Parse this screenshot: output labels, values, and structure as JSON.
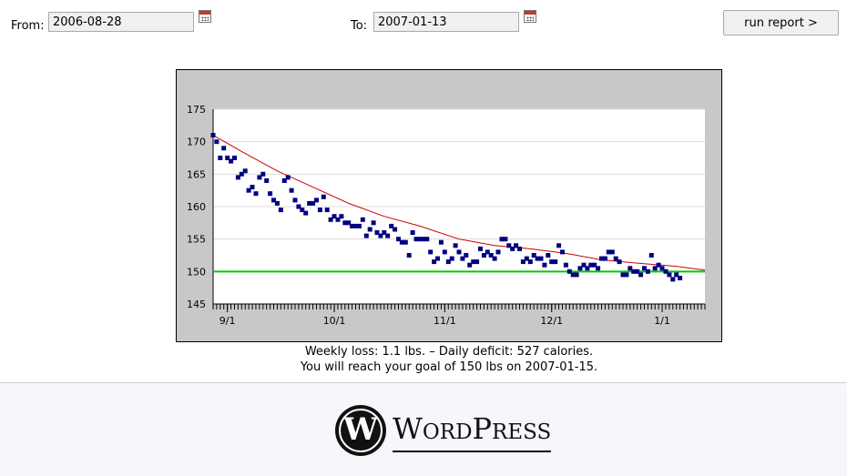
{
  "form": {
    "from_label": "From:",
    "from_value": "2006-08-28",
    "to_label": "To:",
    "to_value": "2007-01-13",
    "submit_label": "run report >",
    "calendar_icon": "calendar-icon"
  },
  "chart_data": {
    "type": "scatter",
    "title": "",
    "xlabel": "",
    "ylabel": "",
    "ylim": [
      145,
      175
    ],
    "yticks": [
      175,
      170,
      165,
      160,
      155,
      150,
      145
    ],
    "xlim": [
      "2006-08-28",
      "2007-01-13"
    ],
    "xticks": [
      {
        "label": "9/1",
        "date": "2006-09-01"
      },
      {
        "label": "10/1",
        "date": "2006-10-01"
      },
      {
        "label": "11/1",
        "date": "2006-11-01"
      },
      {
        "label": "12/1",
        "date": "2006-12-01"
      },
      {
        "label": "1/1",
        "date": "2007-01-01"
      }
    ],
    "grid": true,
    "legend": "none",
    "colors": {
      "points": "#000080",
      "trend": "#cc0000",
      "goal": "#00cc00",
      "plot_bg": "#ffffff",
      "frame_bg": "#c8c8c8"
    },
    "goal": 150,
    "points": [
      [
        "2006-08-28",
        171.0
      ],
      [
        "2006-08-29",
        170.0
      ],
      [
        "2006-08-30",
        167.5
      ],
      [
        "2006-08-31",
        169.0
      ],
      [
        "2006-09-01",
        167.5
      ],
      [
        "2006-09-02",
        167.0
      ],
      [
        "2006-09-03",
        167.5
      ],
      [
        "2006-09-04",
        164.5
      ],
      [
        "2006-09-05",
        165.0
      ],
      [
        "2006-09-06",
        165.5
      ],
      [
        "2006-09-07",
        162.5
      ],
      [
        "2006-09-08",
        163.0
      ],
      [
        "2006-09-09",
        162.0
      ],
      [
        "2006-09-10",
        164.5
      ],
      [
        "2006-09-11",
        165.0
      ],
      [
        "2006-09-12",
        164.0
      ],
      [
        "2006-09-13",
        162.0
      ],
      [
        "2006-09-14",
        161.0
      ],
      [
        "2006-09-15",
        160.5
      ],
      [
        "2006-09-16",
        159.5
      ],
      [
        "2006-09-17",
        164.0
      ],
      [
        "2006-09-18",
        164.5
      ],
      [
        "2006-09-19",
        162.5
      ],
      [
        "2006-09-20",
        161.0
      ],
      [
        "2006-09-21",
        160.0
      ],
      [
        "2006-09-22",
        159.5
      ],
      [
        "2006-09-23",
        159.0
      ],
      [
        "2006-09-24",
        160.5
      ],
      [
        "2006-09-25",
        160.5
      ],
      [
        "2006-09-26",
        161.0
      ],
      [
        "2006-09-27",
        159.5
      ],
      [
        "2006-09-28",
        161.5
      ],
      [
        "2006-09-29",
        159.5
      ],
      [
        "2006-09-30",
        158.0
      ],
      [
        "2006-10-01",
        158.5
      ],
      [
        "2006-10-02",
        158.0
      ],
      [
        "2006-10-03",
        158.5
      ],
      [
        "2006-10-04",
        157.5
      ],
      [
        "2006-10-05",
        157.5
      ],
      [
        "2006-10-06",
        157.0
      ],
      [
        "2006-10-07",
        157.0
      ],
      [
        "2006-10-08",
        157.0
      ],
      [
        "2006-10-09",
        158.0
      ],
      [
        "2006-10-10",
        155.5
      ],
      [
        "2006-10-11",
        156.5
      ],
      [
        "2006-10-12",
        157.5
      ],
      [
        "2006-10-13",
        156.0
      ],
      [
        "2006-10-14",
        155.5
      ],
      [
        "2006-10-15",
        156.0
      ],
      [
        "2006-10-16",
        155.5
      ],
      [
        "2006-10-17",
        157.0
      ],
      [
        "2006-10-18",
        156.5
      ],
      [
        "2006-10-19",
        155.0
      ],
      [
        "2006-10-20",
        154.5
      ],
      [
        "2006-10-21",
        154.5
      ],
      [
        "2006-10-22",
        152.5
      ],
      [
        "2006-10-23",
        156.0
      ],
      [
        "2006-10-24",
        155.0
      ],
      [
        "2006-10-25",
        155.0
      ],
      [
        "2006-10-26",
        155.0
      ],
      [
        "2006-10-27",
        155.0
      ],
      [
        "2006-10-28",
        153.0
      ],
      [
        "2006-10-29",
        151.5
      ],
      [
        "2006-10-30",
        152.0
      ],
      [
        "2006-10-31",
        154.5
      ],
      [
        "2006-11-01",
        153.0
      ],
      [
        "2006-11-02",
        151.5
      ],
      [
        "2006-11-03",
        152.0
      ],
      [
        "2006-11-04",
        154.0
      ],
      [
        "2006-11-05",
        153.0
      ],
      [
        "2006-11-06",
        152.0
      ],
      [
        "2006-11-07",
        152.5
      ],
      [
        "2006-11-08",
        151.0
      ],
      [
        "2006-11-09",
        151.5
      ],
      [
        "2006-11-10",
        151.5
      ],
      [
        "2006-11-11",
        153.5
      ],
      [
        "2006-11-12",
        152.5
      ],
      [
        "2006-11-13",
        153.0
      ],
      [
        "2006-11-14",
        152.5
      ],
      [
        "2006-11-15",
        152.0
      ],
      [
        "2006-11-16",
        153.0
      ],
      [
        "2006-11-17",
        155.0
      ],
      [
        "2006-11-18",
        155.0
      ],
      [
        "2006-11-19",
        154.0
      ],
      [
        "2006-11-20",
        153.5
      ],
      [
        "2006-11-21",
        154.0
      ],
      [
        "2006-11-22",
        153.5
      ],
      [
        "2006-11-23",
        151.5
      ],
      [
        "2006-11-24",
        152.0
      ],
      [
        "2006-11-25",
        151.5
      ],
      [
        "2006-11-26",
        152.5
      ],
      [
        "2006-11-27",
        152.0
      ],
      [
        "2006-11-28",
        152.0
      ],
      [
        "2006-11-29",
        151.0
      ],
      [
        "2006-11-30",
        152.5
      ],
      [
        "2006-12-01",
        151.5
      ],
      [
        "2006-12-02",
        151.5
      ],
      [
        "2006-12-03",
        154.0
      ],
      [
        "2006-12-04",
        153.0
      ],
      [
        "2006-12-05",
        151.0
      ],
      [
        "2006-12-06",
        150.0
      ],
      [
        "2006-12-07",
        149.5
      ],
      [
        "2006-12-08",
        149.5
      ],
      [
        "2006-12-09",
        150.5
      ],
      [
        "2006-12-10",
        151.0
      ],
      [
        "2006-12-11",
        150.5
      ],
      [
        "2006-12-12",
        151.0
      ],
      [
        "2006-12-13",
        151.0
      ],
      [
        "2006-12-14",
        150.5
      ],
      [
        "2006-12-15",
        152.0
      ],
      [
        "2006-12-16",
        152.0
      ],
      [
        "2006-12-17",
        153.0
      ],
      [
        "2006-12-18",
        153.0
      ],
      [
        "2006-12-19",
        152.0
      ],
      [
        "2006-12-20",
        151.5
      ],
      [
        "2006-12-21",
        149.5
      ],
      [
        "2006-12-22",
        149.5
      ],
      [
        "2006-12-23",
        150.5
      ],
      [
        "2006-12-24",
        150.0
      ],
      [
        "2006-12-25",
        150.0
      ],
      [
        "2006-12-26",
        149.5
      ],
      [
        "2006-12-27",
        150.5
      ],
      [
        "2006-12-28",
        150.0
      ],
      [
        "2006-12-29",
        152.5
      ],
      [
        "2006-12-30",
        150.5
      ],
      [
        "2006-12-31",
        151.0
      ],
      [
        "2007-01-01",
        150.5
      ],
      [
        "2007-01-02",
        150.0
      ],
      [
        "2007-01-03",
        149.5
      ],
      [
        "2007-01-04",
        148.8
      ],
      [
        "2007-01-05",
        149.5
      ],
      [
        "2007-01-06",
        149.0
      ]
    ],
    "trend": [
      [
        "2006-08-28",
        171.0
      ],
      [
        "2006-09-05",
        168.5
      ],
      [
        "2006-09-15",
        165.5
      ],
      [
        "2006-09-25",
        163.0
      ],
      [
        "2006-10-05",
        160.5
      ],
      [
        "2006-10-15",
        158.5
      ],
      [
        "2006-10-25",
        157.0
      ],
      [
        "2006-11-05",
        155.0
      ],
      [
        "2006-11-15",
        154.0
      ],
      [
        "2006-11-25",
        153.5
      ],
      [
        "2006-12-05",
        152.8
      ],
      [
        "2006-12-15",
        151.8
      ],
      [
        "2006-12-25",
        151.3
      ],
      [
        "2007-01-05",
        150.8
      ],
      [
        "2007-01-13",
        150.2
      ]
    ]
  },
  "summary": {
    "line1": "Weekly loss: 1.1 lbs. – Daily deficit: 527 calories.",
    "line2": "You will reach your goal of 150 lbs on 2007-01-15."
  },
  "footer": {
    "logo_icon": "wordpress-logo",
    "logo_letter": "W",
    "brand_word1_initial": "W",
    "brand_word1_rest": "ORD",
    "brand_word2_initial": "P",
    "brand_word2_rest": "RESS"
  }
}
